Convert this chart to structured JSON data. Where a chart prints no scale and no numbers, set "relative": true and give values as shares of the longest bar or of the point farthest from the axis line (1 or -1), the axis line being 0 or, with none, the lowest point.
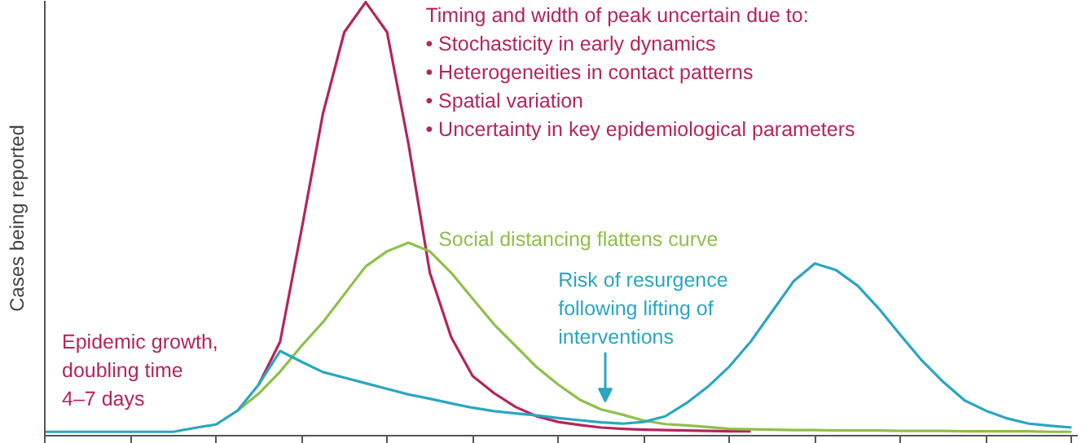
{
  "chart_data": {
    "type": "line",
    "relative": true,
    "ylabel": "Cases being reported",
    "categories": [
      null,
      null,
      null,
      null,
      null,
      null,
      null,
      null,
      null,
      null,
      null,
      null,
      null,
      null,
      null,
      null,
      null,
      null,
      null,
      null,
      null,
      null,
      null,
      null,
      null,
      null,
      null,
      null,
      null,
      null,
      null,
      null,
      null,
      null,
      null,
      null,
      null,
      null,
      null,
      null,
      null,
      null,
      null,
      null,
      null,
      null,
      null,
      null,
      null
    ],
    "line_style": "solid",
    "series": [
      {
        "color": "#b5245c",
        "values": [
          null,
          null,
          null,
          null,
          null,
          null,
          null,
          null,
          null,
          null,
          0.11,
          0.21,
          0.47,
          0.74,
          0.93,
          1.0,
          0.93,
          0.67,
          0.37,
          0.22,
          0.13,
          0.09,
          0.058,
          0.036,
          0.023,
          0.016,
          0.01,
          0.007,
          0.005,
          0.004,
          0.003,
          0.002,
          0.001,
          0.001,
          null,
          null,
          null,
          null,
          null,
          null,
          null,
          null,
          null,
          null,
          null,
          null,
          null,
          null,
          null
        ]
      },
      {
        "color": "#8fbf4a",
        "values": [
          null,
          null,
          null,
          null,
          null,
          null,
          null,
          null,
          null,
          0.049,
          0.089,
          0.14,
          0.2,
          0.255,
          0.32,
          0.385,
          0.42,
          0.44,
          0.42,
          0.37,
          0.31,
          0.25,
          0.2,
          0.15,
          0.11,
          0.075,
          0.052,
          0.04,
          0.026,
          0.018,
          0.015,
          0.011,
          0.007,
          0.006,
          0.005,
          0.004,
          0.004,
          0.003,
          0.003,
          0.003,
          0.002,
          0.002,
          0.002,
          0.001,
          0.001,
          0.001,
          0.001,
          0,
          0
        ]
      },
      {
        "color": "#2aa6c0",
        "values": [
          0,
          0,
          0,
          0,
          0,
          0,
          0,
          0.009,
          0.017,
          0.049,
          0.11,
          0.188,
          0.163,
          0.139,
          0.126,
          0.113,
          0.1,
          0.087,
          0.077,
          0.066,
          0.056,
          0.048,
          0.043,
          0.038,
          0.032,
          0.027,
          0.022,
          0.019,
          0.023,
          0.036,
          0.067,
          0.105,
          0.152,
          0.21,
          0.28,
          0.35,
          0.392,
          0.376,
          0.34,
          0.286,
          0.225,
          0.166,
          0.116,
          0.073,
          0.049,
          0.031,
          0.019,
          0.014,
          0.01
        ]
      }
    ],
    "annotations": [
      "Timing and width of peak uncertain due to:\n• Stochasticity in early dynamics\n• Heterogeneities in contact patterns\n• Spatial variation\n• Uncertainty in key epidemiological parameters",
      "Social distancing flattens curve",
      "Risk of resurgence\nfollowing lifting of\ninterventions",
      "Epidemic growth,\ndoubling time\n4–7 days"
    ]
  }
}
